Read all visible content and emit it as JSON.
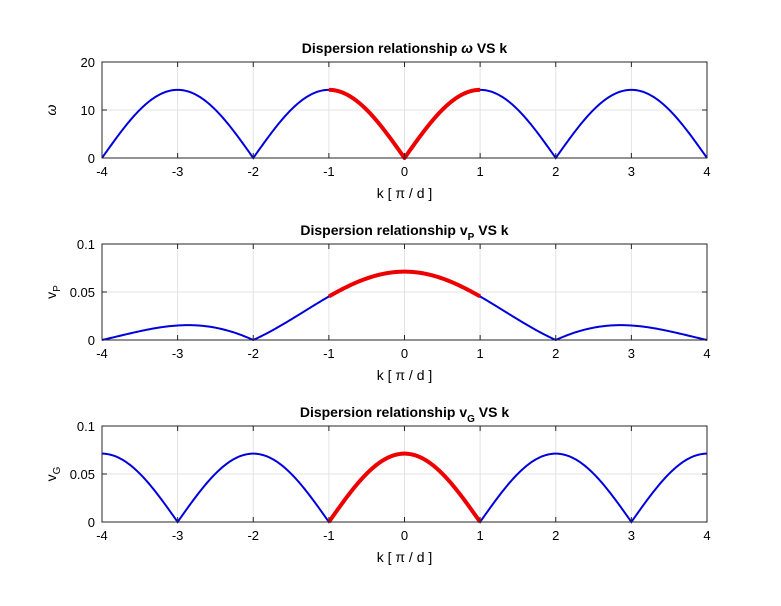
{
  "chart_data": [
    {
      "type": "line",
      "title": "Dispersion relationship ω VS k",
      "title_parts": [
        "Dispersion relationship ",
        "ω",
        "",
        " VS k"
      ],
      "xlabel": "k   [ π / d ]",
      "ylabel": "ω",
      "ylabel_sub": "",
      "xlim": [
        -4,
        4
      ],
      "ylim": [
        0,
        20
      ],
      "xticks": [
        "-4",
        "-3",
        "-2",
        "-1",
        "0",
        "1",
        "2",
        "3",
        "4"
      ],
      "yticks": [
        "0",
        "10",
        "20"
      ],
      "grid": true,
      "curve": "omega",
      "amplitude": 14.2,
      "highlight_range": [
        -1,
        1
      ],
      "series_colors": {
        "full": "#0000dd",
        "highlight": "#ee0000"
      }
    },
    {
      "type": "line",
      "title": "Dispersion relationship vP VS k",
      "title_parts": [
        "Dispersion relationship ",
        "v",
        "P",
        " VS k"
      ],
      "xlabel": "k   [ π / d ]",
      "ylabel": "v",
      "ylabel_sub": "P",
      "xlim": [
        -4,
        4
      ],
      "ylim": [
        0,
        0.1
      ],
      "xticks": [
        "-4",
        "-3",
        "-2",
        "-1",
        "0",
        "1",
        "2",
        "3",
        "4"
      ],
      "yticks": [
        "0",
        "0.05",
        "0.1"
      ],
      "grid": true,
      "curve": "phase",
      "amplitude": 0.0712,
      "highlight_range": [
        -1,
        1
      ],
      "series_colors": {
        "full": "#0000dd",
        "highlight": "#ee0000"
      }
    },
    {
      "type": "line",
      "title": "Dispersion relationship vG VS k",
      "title_parts": [
        "Dispersion relationship ",
        "v",
        "G",
        " VS k"
      ],
      "xlabel": "k   [ π / d ]",
      "ylabel": "v",
      "ylabel_sub": "G",
      "xlim": [
        -4,
        4
      ],
      "ylim": [
        0,
        0.1
      ],
      "xticks": [
        "-4",
        "-3",
        "-2",
        "-1",
        "0",
        "1",
        "2",
        "3",
        "4"
      ],
      "yticks": [
        "0",
        "0.05",
        "0.1"
      ],
      "grid": true,
      "curve": "group",
      "amplitude": 0.0712,
      "highlight_range": [
        -1,
        1
      ],
      "series_colors": {
        "full": "#0000dd",
        "highlight": "#ee0000"
      }
    }
  ]
}
